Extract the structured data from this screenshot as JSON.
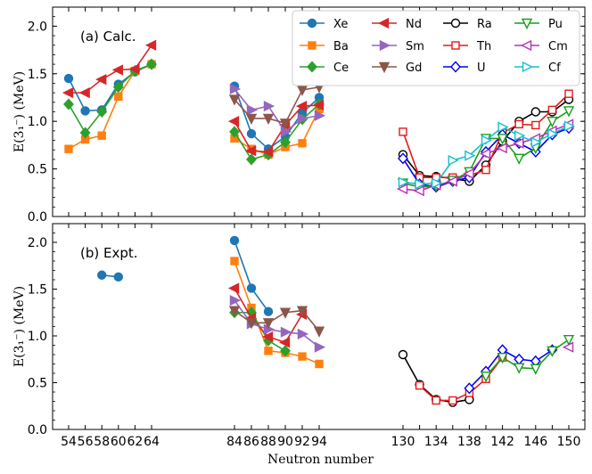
{
  "chart_data": [
    {
      "type": "line",
      "panel_label": "(a) Calc.",
      "xlabel": "",
      "ylabel": "E(3₁⁻) (MeV)",
      "ylim": [
        0,
        2.2
      ],
      "yticks": [
        0.0,
        0.5,
        1.0,
        1.5,
        2.0
      ],
      "ytick_labels": [
        "0.0",
        "0.5",
        "1.0",
        "1.5",
        "2.0"
      ],
      "legend_position": "top-right",
      "series": [
        {
          "name": "Xe",
          "color": "#1f77b4",
          "marker": "circle",
          "fill": true,
          "points": [
            [
              54,
              1.45
            ],
            [
              56,
              1.11
            ],
            [
              58,
              1.12
            ],
            [
              60,
              1.39
            ],
            [
              62,
              1.52
            ],
            [
              64,
              1.6
            ],
            [
              84,
              1.37
            ],
            [
              86,
              0.87
            ],
            [
              88,
              0.71
            ],
            [
              90,
              0.84
            ],
            [
              92,
              1.09
            ],
            [
              94,
              1.25
            ]
          ]
        },
        {
          "name": "Ba",
          "color": "#ff7f0e",
          "marker": "square",
          "fill": true,
          "points": [
            [
              54,
              0.71
            ],
            [
              56,
              0.81
            ],
            [
              58,
              0.85
            ],
            [
              60,
              1.26
            ],
            [
              62,
              1.53
            ],
            [
              64,
              1.6
            ],
            [
              84,
              0.82
            ],
            [
              86,
              0.71
            ],
            [
              88,
              0.65
            ],
            [
              90,
              0.73
            ],
            [
              92,
              0.77
            ],
            [
              94,
              1.13
            ]
          ]
        },
        {
          "name": "Ce",
          "color": "#2ca02c",
          "marker": "diamond",
          "fill": true,
          "points": [
            [
              54,
              1.18
            ],
            [
              56,
              0.88
            ],
            [
              58,
              1.1
            ],
            [
              60,
              1.36
            ],
            [
              62,
              1.53
            ],
            [
              64,
              1.6
            ],
            [
              84,
              0.89
            ],
            [
              86,
              0.6
            ],
            [
              88,
              0.65
            ],
            [
              90,
              0.78
            ],
            [
              92,
              1.02
            ],
            [
              94,
              1.18
            ]
          ]
        },
        {
          "name": "Nd",
          "color": "#d62728",
          "marker": "triangle-left",
          "fill": true,
          "points": [
            [
              54,
              1.3
            ],
            [
              56,
              1.3
            ],
            [
              58,
              1.44
            ],
            [
              60,
              1.54
            ],
            [
              62,
              1.55
            ],
            [
              64,
              1.8
            ],
            [
              84,
              1.0
            ],
            [
              86,
              0.69
            ],
            [
              88,
              0.68
            ],
            [
              90,
              0.96
            ],
            [
              92,
              1.16
            ],
            [
              94,
              1.17
            ]
          ]
        },
        {
          "name": "Sm",
          "color": "#9467bd",
          "marker": "triangle-right",
          "fill": true,
          "points": [
            [
              84,
              1.34
            ],
            [
              86,
              1.12
            ],
            [
              88,
              1.16
            ],
            [
              90,
              0.89
            ],
            [
              92,
              1.03
            ],
            [
              94,
              1.06
            ]
          ]
        },
        {
          "name": "Gd",
          "color": "#8c564b",
          "marker": "triangle-down",
          "fill": true,
          "points": [
            [
              84,
              1.23
            ],
            [
              86,
              1.03
            ],
            [
              88,
              1.03
            ],
            [
              90,
              0.98
            ],
            [
              92,
              1.33
            ],
            [
              94,
              1.36
            ]
          ]
        },
        {
          "name": "Ra",
          "color": "#000000",
          "marker": "circle",
          "fill": false,
          "points": [
            [
              130,
              0.65
            ],
            [
              132,
              0.43
            ],
            [
              134,
              0.42
            ],
            [
              136,
              0.4
            ],
            [
              138,
              0.37
            ],
            [
              140,
              0.54
            ],
            [
              142,
              0.79
            ],
            [
              144,
              1.0
            ],
            [
              146,
              1.1
            ],
            [
              148,
              1.1
            ],
            [
              150,
              1.23
            ]
          ]
        },
        {
          "name": "Th",
          "color": "#e31a1c",
          "marker": "square",
          "fill": false,
          "points": [
            [
              130,
              0.89
            ],
            [
              132,
              0.41
            ],
            [
              134,
              0.41
            ],
            [
              136,
              0.41
            ],
            [
              138,
              0.43
            ],
            [
              140,
              0.49
            ],
            [
              142,
              0.88
            ],
            [
              144,
              0.97
            ],
            [
              146,
              0.96
            ],
            [
              148,
              1.12
            ],
            [
              150,
              1.29
            ]
          ]
        },
        {
          "name": "U",
          "color": "#0000ee",
          "marker": "diamond",
          "fill": false,
          "points": [
            [
              130,
              0.61
            ],
            [
              132,
              0.34
            ],
            [
              134,
              0.31
            ],
            [
              136,
              0.37
            ],
            [
              138,
              0.41
            ],
            [
              140,
              0.68
            ],
            [
              142,
              0.86
            ],
            [
              144,
              0.77
            ],
            [
              146,
              0.68
            ],
            [
              148,
              0.86
            ],
            [
              150,
              0.93
            ]
          ]
        },
        {
          "name": "Pu",
          "color": "#1a9e1a",
          "marker": "triangle-down",
          "fill": false,
          "points": [
            [
              130,
              0.35
            ],
            [
              132,
              0.31
            ],
            [
              134,
              0.32
            ],
            [
              136,
              0.38
            ],
            [
              138,
              0.47
            ],
            [
              140,
              0.82
            ],
            [
              142,
              0.82
            ],
            [
              144,
              0.61
            ],
            [
              146,
              0.72
            ],
            [
              148,
              1.0
            ],
            [
              150,
              1.11
            ]
          ]
        },
        {
          "name": "Cm",
          "color": "#b434b4",
          "marker": "triangle-left",
          "fill": false,
          "points": [
            [
              130,
              0.29
            ],
            [
              132,
              0.27
            ],
            [
              134,
              0.33
            ],
            [
              136,
              0.37
            ],
            [
              138,
              0.45
            ],
            [
              140,
              0.66
            ],
            [
              142,
              0.72
            ],
            [
              144,
              0.77
            ],
            [
              146,
              0.82
            ],
            [
              148,
              0.9
            ],
            [
              150,
              0.97
            ]
          ]
        },
        {
          "name": "Cf",
          "color": "#17becf",
          "marker": "triangle-right",
          "fill": false,
          "points": [
            [
              130,
              0.36
            ],
            [
              132,
              0.34
            ],
            [
              134,
              0.35
            ],
            [
              136,
              0.59
            ],
            [
              138,
              0.64
            ],
            [
              140,
              0.8
            ],
            [
              142,
              0.94
            ],
            [
              144,
              0.85
            ],
            [
              146,
              0.78
            ],
            [
              148,
              0.87
            ],
            [
              150,
              0.95
            ]
          ]
        }
      ]
    },
    {
      "type": "line",
      "panel_label": "(b) Expt.",
      "xlabel": "Neutron number",
      "ylabel": "E(3₁⁻) (MeV)",
      "ylim": [
        0,
        2.2
      ],
      "yticks": [
        0.0,
        0.5,
        1.0,
        1.5,
        2.0
      ],
      "ytick_labels": [
        "0.0",
        "0.5",
        "1.0",
        "1.5",
        "2.0"
      ],
      "xtick_groups": [
        {
          "ticks": [
            54,
            56,
            58,
            60,
            62,
            64
          ],
          "labels": [
            "54",
            "56",
            "58",
            "60",
            "62",
            "64"
          ]
        },
        {
          "ticks": [
            84,
            86,
            88,
            90,
            92,
            94
          ],
          "labels": [
            "84",
            "86",
            "88",
            "90",
            "92",
            "94"
          ]
        },
        {
          "ticks": [
            130,
            132,
            134,
            136,
            138,
            140,
            142,
            144,
            146,
            148,
            150
          ],
          "labels": [
            "130",
            "",
            "134",
            "",
            "138",
            "",
            "142",
            "",
            "146",
            "",
            "150"
          ]
        }
      ],
      "series": [
        {
          "name": "Xe",
          "color": "#1f77b4",
          "marker": "circle",
          "fill": true,
          "points": [
            [
              58,
              1.65
            ],
            [
              60,
              1.63
            ],
            [
              84,
              2.02
            ],
            [
              86,
              1.51
            ],
            [
              88,
              1.26
            ]
          ]
        },
        {
          "name": "Ba",
          "color": "#ff7f0e",
          "marker": "square",
          "fill": true,
          "points": [
            [
              84,
              1.8
            ],
            [
              86,
              1.3
            ],
            [
              88,
              0.84
            ],
            [
              90,
              0.82
            ],
            [
              92,
              0.78
            ],
            [
              94,
              0.7
            ]
          ]
        },
        {
          "name": "Ce",
          "color": "#2ca02c",
          "marker": "diamond",
          "fill": true,
          "points": [
            [
              84,
              1.25
            ],
            [
              86,
              1.25
            ],
            [
              88,
              0.95
            ],
            [
              90,
              0.84
            ]
          ]
        },
        {
          "name": "Nd",
          "color": "#d62728",
          "marker": "triangle-left",
          "fill": true,
          "points": [
            [
              84,
              1.51
            ],
            [
              86,
              1.19
            ],
            [
              88,
              0.99
            ],
            [
              90,
              0.93
            ],
            [
              92,
              1.23
            ]
          ]
        },
        {
          "name": "Sm",
          "color": "#9467bd",
          "marker": "triangle-right",
          "fill": true,
          "points": [
            [
              84,
              1.38
            ],
            [
              86,
              1.13
            ],
            [
              88,
              1.07
            ],
            [
              90,
              1.04
            ],
            [
              92,
              1.02
            ],
            [
              94,
              0.88
            ]
          ]
        },
        {
          "name": "Gd",
          "color": "#8c564b",
          "marker": "triangle-down",
          "fill": true,
          "points": [
            [
              84,
              1.27
            ],
            [
              86,
              1.14
            ],
            [
              88,
              1.14
            ],
            [
              90,
              1.25
            ],
            [
              92,
              1.27
            ],
            [
              94,
              1.05
            ]
          ]
        },
        {
          "name": "Ra",
          "color": "#000000",
          "marker": "circle",
          "fill": false,
          "points": [
            [
              130,
              0.8
            ],
            [
              132,
              0.48
            ],
            [
              134,
              0.32
            ],
            [
              136,
              0.29
            ],
            [
              138,
              0.32
            ]
          ]
        },
        {
          "name": "Th",
          "color": "#e31a1c",
          "marker": "square",
          "fill": false,
          "points": [
            [
              132,
              0.47
            ],
            [
              134,
              0.31
            ],
            [
              136,
              0.31
            ],
            [
              138,
              0.39
            ],
            [
              140,
              0.54
            ],
            [
              142,
              0.77
            ]
          ]
        },
        {
          "name": "U",
          "color": "#0000ee",
          "marker": "diamond",
          "fill": false,
          "points": [
            [
              138,
              0.44
            ],
            [
              140,
              0.62
            ],
            [
              142,
              0.85
            ],
            [
              144,
              0.75
            ],
            [
              146,
              0.73
            ],
            [
              148,
              0.85
            ]
          ]
        },
        {
          "name": "Pu",
          "color": "#1a9e1a",
          "marker": "triangle-down",
          "fill": false,
          "points": [
            [
              140,
              0.57
            ],
            [
              142,
              0.77
            ],
            [
              144,
              0.66
            ],
            [
              146,
              0.65
            ],
            [
              148,
              0.84
            ],
            [
              150,
              0.96
            ]
          ]
        },
        {
          "name": "Cm",
          "color": "#b434b4",
          "marker": "triangle-left",
          "fill": false,
          "points": [
            [
              150,
              0.88
            ]
          ]
        }
      ]
    }
  ]
}
